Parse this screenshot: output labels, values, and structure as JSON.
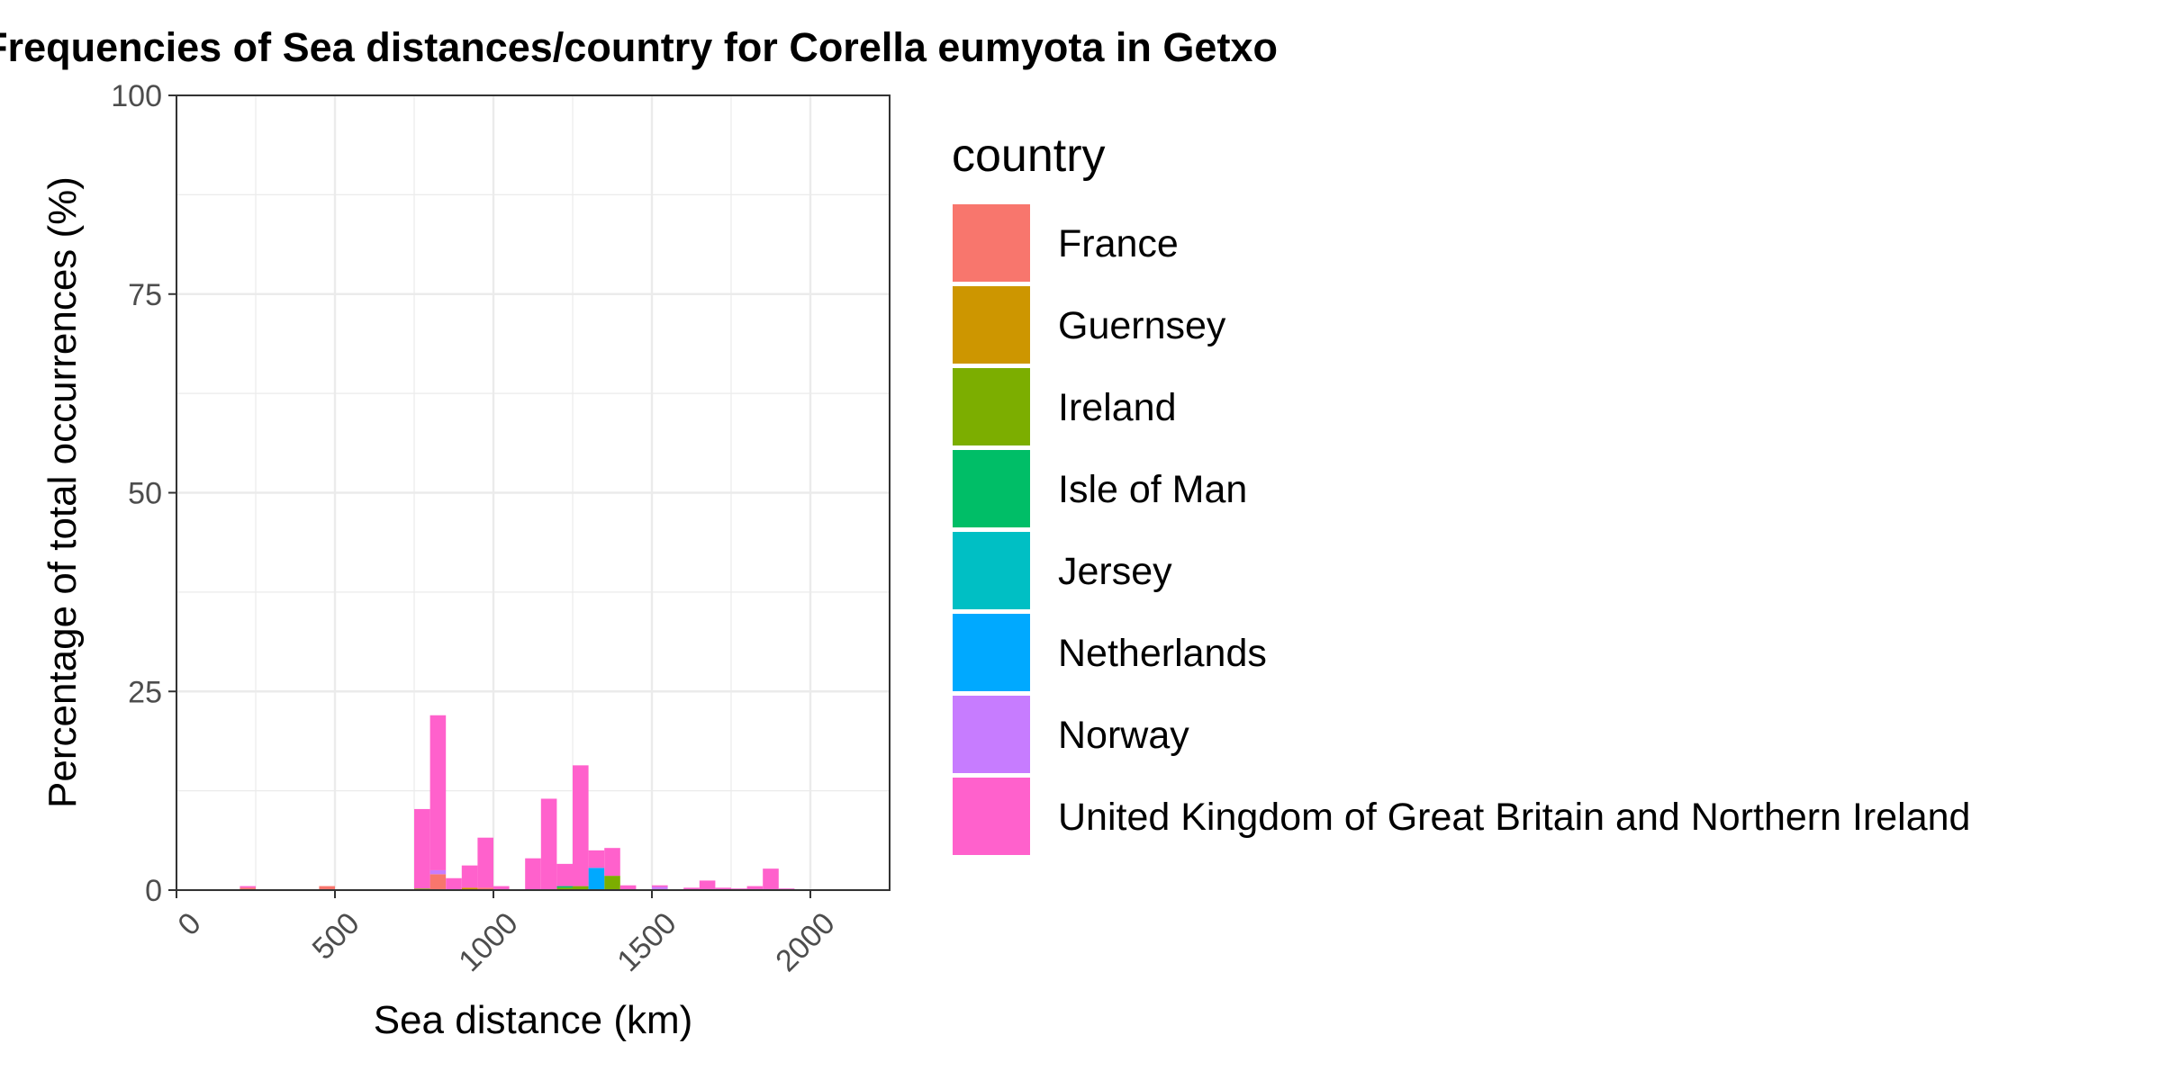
{
  "chart_data": {
    "type": "bar",
    "title": "Frequencies of Sea distances/country for Corella eumyota in Getxo",
    "xlabel": "Sea distance (km)",
    "ylabel": "Percentage of total occurrences (%)",
    "xlim": [
      0,
      2250
    ],
    "ylim": [
      0,
      100
    ],
    "x_ticks": [
      "0",
      "500",
      "1000",
      "1500",
      "2000"
    ],
    "y_ticks": [
      "0",
      "25",
      "50",
      "75",
      "100"
    ],
    "bin_width": 50,
    "stacked": true,
    "grid": true,
    "legend_position": "right",
    "legend_title": "country",
    "series": [
      {
        "name": "France",
        "color": "#F8766D",
        "points": [
          [
            225,
            0.3
          ],
          [
            475,
            0.5
          ],
          [
            825,
            2.0
          ],
          [
            975,
            0.3
          ]
        ]
      },
      {
        "name": "Guernsey",
        "color": "#CD9600",
        "points": [
          [
            925,
            0.3
          ]
        ]
      },
      {
        "name": "Ireland",
        "color": "#7CAE00",
        "points": [
          [
            775,
            0.2
          ],
          [
            1225,
            0.3
          ],
          [
            1275,
            0.5
          ],
          [
            1375,
            1.8
          ]
        ]
      },
      {
        "name": "Isle of Man",
        "color": "#00BE67",
        "points": [
          [
            1225,
            0.2
          ]
        ]
      },
      {
        "name": "Jersey",
        "color": "#00BFC4",
        "points": []
      },
      {
        "name": "Netherlands",
        "color": "#00A9FF",
        "points": [
          [
            1325,
            2.8
          ]
        ]
      },
      {
        "name": "Norway",
        "color": "#C77CFF",
        "points": [
          [
            825,
            0.5
          ],
          [
            1525,
            0.4
          ]
        ]
      },
      {
        "name": "United Kingdom of Great Britain and Northern Ireland",
        "color": "#FF61CC",
        "points": [
          [
            225,
            0.2
          ],
          [
            775,
            10.0
          ],
          [
            825,
            19.5
          ],
          [
            875,
            1.5
          ],
          [
            925,
            2.8
          ],
          [
            975,
            6.3
          ],
          [
            1025,
            0.5
          ],
          [
            1125,
            4.0
          ],
          [
            1175,
            11.5
          ],
          [
            1225,
            2.8
          ],
          [
            1275,
            15.2
          ],
          [
            1325,
            2.2
          ],
          [
            1375,
            3.5
          ],
          [
            1425,
            0.6
          ],
          [
            1525,
            0.2
          ],
          [
            1625,
            0.3
          ],
          [
            1675,
            1.2
          ],
          [
            1725,
            0.3
          ],
          [
            1775,
            0.2
          ],
          [
            1825,
            0.5
          ],
          [
            1875,
            2.7
          ],
          [
            1925,
            0.2
          ]
        ]
      }
    ]
  }
}
